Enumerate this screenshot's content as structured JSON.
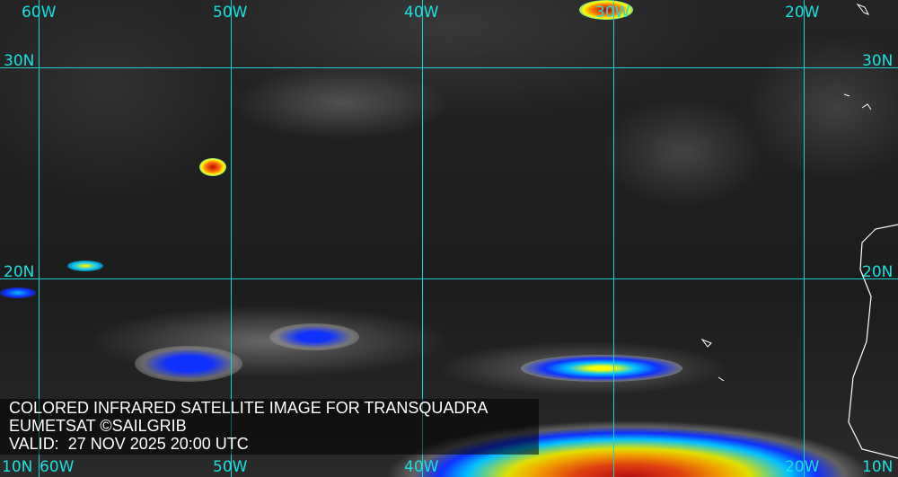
{
  "caption": {
    "line1": "COLORED INFRARED SATELLITE IMAGE FOR TRANSQUADRA",
    "line2": "EUMETSAT ©SAILGRIB",
    "line3": "VALID:  27 NOV 2025 20:00 UTC"
  },
  "grid": {
    "longitudes": [
      "60W",
      "50W",
      "40W",
      "30W",
      "20W"
    ],
    "latitudes": [
      "30N",
      "20N",
      "10N"
    ]
  },
  "colors": {
    "grid": "#19d3d3",
    "coast": "#ffffff",
    "cold_tops": [
      "#0000ff",
      "#00c0ff",
      "#ffff00",
      "#ff8000",
      "#c00000"
    ]
  }
}
